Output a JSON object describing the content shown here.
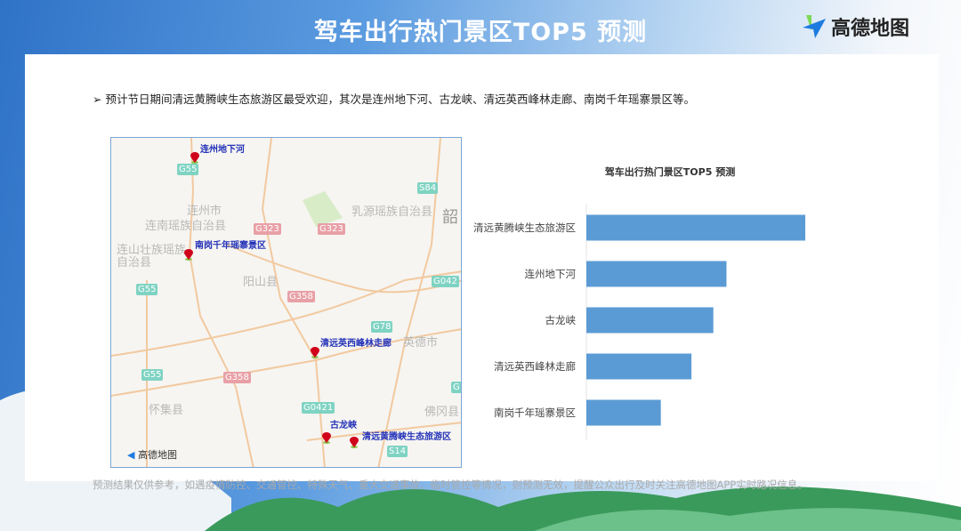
{
  "header": {
    "title": "驾车出行热门景区TOP5 预测",
    "logo_text": "高德地图"
  },
  "summary": "➢ 预计节日期间清远黄腾峡生态旅游区最受欢迎，其次是连州地下河、古龙峡、清远英西峰林走廊、南岗千年瑶寨景区等。",
  "map": {
    "places": [
      "连州市",
      "连南瑶族自治县",
      "连山壮族瑶族自治县",
      "阳山县",
      "乳源瑶族自治县",
      "韶",
      "英德市",
      "佛冈县",
      "怀集县"
    ],
    "shields": [
      "G55",
      "G55",
      "G55",
      "S84",
      "G323",
      "G323",
      "G358",
      "G358",
      "G042",
      "G78",
      "G0421",
      "S14",
      "G"
    ],
    "markers": [
      "连州地下河",
      "南岗千年瑶寨景区",
      "清远英西峰林走廊",
      "古龙峡",
      "清远黄腾峡生态旅游区"
    ],
    "logo_text": "高德地图"
  },
  "chart_data": {
    "type": "bar",
    "orientation": "horizontal",
    "title": "驾车出行热门景区TOP5 预测",
    "categories": [
      "清远黄腾峡生态旅游区",
      "连州地下河",
      "古龙峡",
      "清远英西峰林走廊",
      "南岗千年瑶寨景区"
    ],
    "values": [
      100,
      64,
      58,
      48,
      34
    ],
    "value_axis_shown": false,
    "grid": false,
    "color": "#5b9bd5"
  },
  "footer": "预测结果仅供参考，如遇疫情防控、交通管控、特殊天气、重大交通事故、临时管控等情况，则预测无效，提醒公众出行及时关注高德地图APP实时路况信息。"
}
